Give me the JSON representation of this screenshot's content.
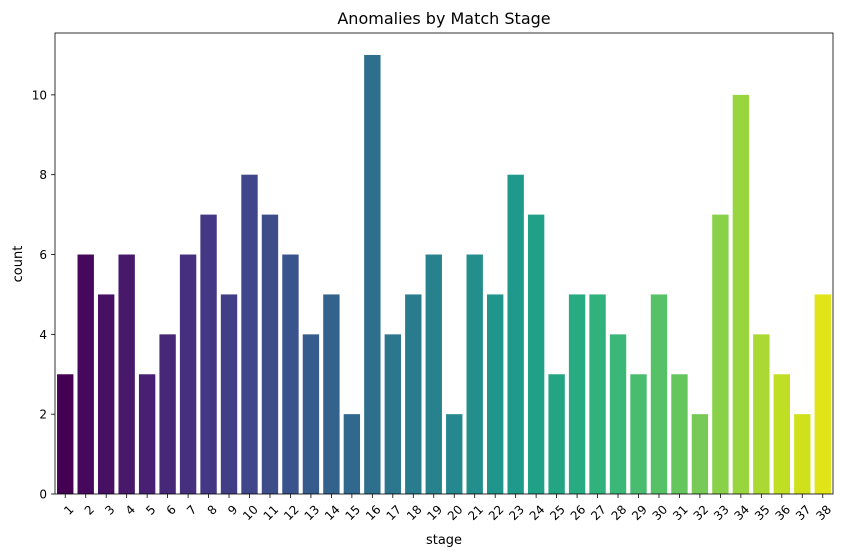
{
  "chart_data": {
    "type": "bar",
    "title": "Anomalies by Match Stage",
    "xlabel": "stage",
    "ylabel": "count",
    "ylim": [
      0,
      11.55
    ],
    "yticks": [
      0,
      2,
      4,
      6,
      8,
      10
    ],
    "grid": false,
    "legend": "none",
    "palette": "viridis",
    "categories": [
      "1",
      "2",
      "3",
      "4",
      "5",
      "6",
      "7",
      "8",
      "9",
      "10",
      "11",
      "12",
      "13",
      "14",
      "15",
      "16",
      "17",
      "18",
      "19",
      "20",
      "21",
      "22",
      "23",
      "24",
      "25",
      "26",
      "27",
      "28",
      "29",
      "30",
      "31",
      "32",
      "33",
      "34",
      "35",
      "36",
      "37",
      "38"
    ],
    "values": [
      3,
      6,
      5,
      6,
      3,
      4,
      6,
      7,
      5,
      8,
      7,
      6,
      4,
      5,
      2,
      11,
      4,
      5,
      6,
      2,
      6,
      5,
      8,
      7,
      3,
      5,
      5,
      4,
      3,
      5,
      3,
      2,
      7,
      10,
      4,
      3,
      2,
      5
    ],
    "colors": [
      "#440154",
      "#46085c",
      "#471063",
      "#48186a",
      "#482071",
      "#472777",
      "#462f7d",
      "#443783",
      "#423e86",
      "#3f4689",
      "#3c4d8a",
      "#39548c",
      "#365c8d",
      "#33628d",
      "#30688e",
      "#2e6f8e",
      "#2c768e",
      "#297b8e",
      "#27828e",
      "#25888e",
      "#238e8c",
      "#21948b",
      "#1f9a8a",
      "#20a087",
      "#23a584",
      "#28ab80",
      "#31b17b",
      "#3bb777",
      "#49bc70",
      "#56c267",
      "#65c65e",
      "#76ca55",
      "#88d149",
      "#98d53e",
      "#aad933",
      "#c0de24",
      "#d0e11c",
      "#e0e418"
    ]
  }
}
